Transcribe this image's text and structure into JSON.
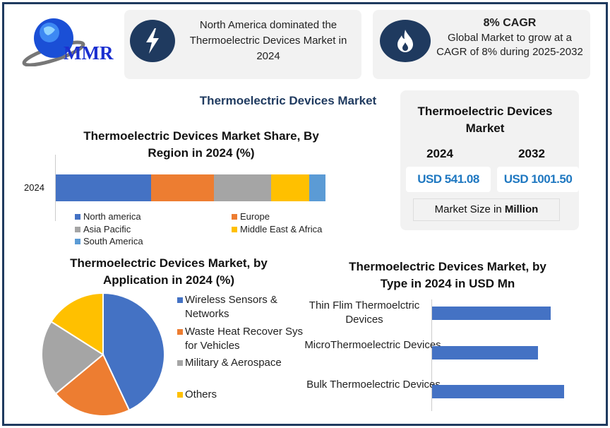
{
  "logo": {
    "text": "MMR"
  },
  "highlights": [
    {
      "icon": "lightning-icon",
      "text": "North America dominated the Thermoelectric Devices Market in 2024"
    },
    {
      "icon": "flame-icon",
      "heading": "8% CAGR",
      "text": "Global Market to grow at a CAGR of 8% during 2025-2032"
    }
  ],
  "main_title": "Thermoelectric Devices Market",
  "market_size": {
    "title": "Thermoelectric Devices Market",
    "years": [
      "2024",
      "2032"
    ],
    "values": [
      "USD 541.08",
      "USD 1001.50"
    ],
    "unit_prefix": "Market Size in ",
    "unit": "Million"
  },
  "colors": {
    "frame": "#1f3a5f",
    "accent_value": "#1f78c1",
    "blue": "#4472c4",
    "orange": "#ed7d31",
    "gray": "#a5a5a5",
    "yellow": "#ffc000",
    "light_blue": "#5b9bd5"
  },
  "chart_data": [
    {
      "type": "bar",
      "orientation": "horizontal-stacked",
      "title": "Thermoelectric Devices Market Share, By Region in 2024 (%)",
      "categories": [
        "2024"
      ],
      "series": [
        {
          "name": "North america",
          "values": [
            35
          ],
          "color": "#4472c4"
        },
        {
          "name": "Europe",
          "values": [
            23
          ],
          "color": "#ed7d31"
        },
        {
          "name": "Asia Pacific",
          "values": [
            21
          ],
          "color": "#a5a5a5"
        },
        {
          "name": "Middle East & Africa",
          "values": [
            14
          ],
          "color": "#ffc000"
        },
        {
          "name": "South America",
          "values": [
            6
          ],
          "color": "#5b9bd5"
        }
      ],
      "xlim": [
        0,
        100
      ],
      "legend": "bottom"
    },
    {
      "type": "pie",
      "title": "Thermoelectric Devices  Market, by Application in 2024 (%)",
      "labels": [
        "Wireless Sensors & Networks",
        "Waste Heat Recover Sys for Vehicles",
        "Military & Aerospace",
        "Others"
      ],
      "values": [
        43,
        21,
        20,
        16
      ],
      "colors": [
        "#4472c4",
        "#ed7d31",
        "#a5a5a5",
        "#ffc000"
      ],
      "legend": "right"
    },
    {
      "type": "bar",
      "orientation": "horizontal",
      "title": "Thermoelectric Devices Market, by Type in 2024 in USD Mn",
      "categories": [
        "Thin Flim Thermoelctric Devices",
        "MicroThermoelectric Devices",
        "Bulk Thermoelectric Devices"
      ],
      "values": [
        168,
        150,
        187
      ],
      "xlim": [
        0,
        200
      ],
      "color": "#4472c4"
    }
  ]
}
